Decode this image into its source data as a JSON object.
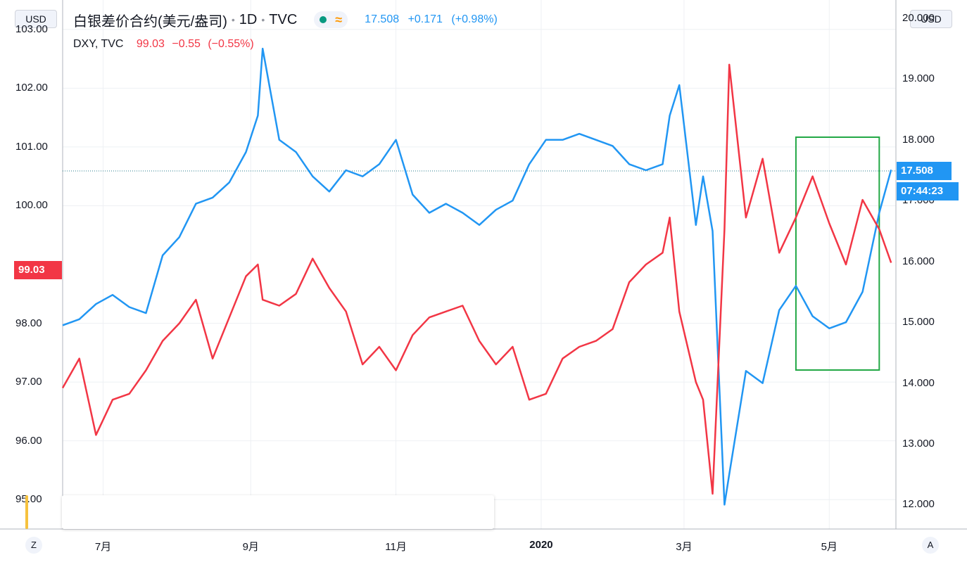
{
  "header": {
    "symbol": "白银差价合约(美元/盎司)",
    "interval": "1D",
    "source": "TVC",
    "silver_last": "17.508",
    "silver_change": "+0.171",
    "silver_change_pct": "(+0.98%)"
  },
  "dxy": {
    "name": "DXY, TVC",
    "last": "99.03",
    "change": "−0.55",
    "change_pct": "(−0.55%)"
  },
  "axes": {
    "left_currency": "USD",
    "right_currency": "USD",
    "left_ticks": [
      "103.00",
      "102.00",
      "101.00",
      "100.00",
      "98.00",
      "97.00",
      "96.00",
      "95.00"
    ],
    "right_ticks": [
      "20.000",
      "19.000",
      "18.000",
      "17.000",
      "16.000",
      "15.000",
      "14.000",
      "13.000",
      "12.000"
    ],
    "time_ticks": [
      "7月",
      "9月",
      "11月",
      "2020",
      "3月",
      "5月"
    ],
    "left_corner": "Z",
    "right_corner": "A"
  },
  "price_tags": {
    "dxy": "99.03",
    "silver": "17.508",
    "countdown": "07:44:23"
  },
  "colors": {
    "silver": "#2196f3",
    "dxy": "#f23645",
    "highlight_box": "#22a845",
    "grid": "#eef0f4"
  },
  "chart_data": {
    "type": "line",
    "x_range": [
      "2019-06-14",
      "2020-05-29"
    ],
    "highlight_range": {
      "x": [
        "2020-04-17",
        "2020-05-22"
      ]
    },
    "y_left": {
      "series": "DXY, TVC",
      "ylim": [
        94.5,
        103.5
      ]
    },
    "y_right": {
      "series": "白银差价合约(美元/盎司)",
      "ylim": [
        11.6,
        20.3
      ]
    },
    "series": [
      {
        "name": "白银差价合约(美元/盎司)",
        "axis": "right",
        "last": 17.508,
        "x": [
          "2019-06-14",
          "2019-06-21",
          "2019-06-28",
          "2019-07-05",
          "2019-07-12",
          "2019-07-19",
          "2019-07-26",
          "2019-08-02",
          "2019-08-09",
          "2019-08-16",
          "2019-08-23",
          "2019-08-30",
          "2019-09-04",
          "2019-09-06",
          "2019-09-13",
          "2019-09-20",
          "2019-09-27",
          "2019-10-04",
          "2019-10-11",
          "2019-10-18",
          "2019-10-25",
          "2019-11-01",
          "2019-11-08",
          "2019-11-15",
          "2019-11-22",
          "2019-11-29",
          "2019-12-06",
          "2019-12-13",
          "2019-12-20",
          "2019-12-27",
          "2020-01-03",
          "2020-01-10",
          "2020-01-17",
          "2020-01-24",
          "2020-01-31",
          "2020-02-07",
          "2020-02-14",
          "2020-02-21",
          "2020-02-24",
          "2020-02-28",
          "2020-03-06",
          "2020-03-09",
          "2020-03-13",
          "2020-03-18",
          "2020-03-20",
          "2020-03-27",
          "2020-04-03",
          "2020-04-10",
          "2020-04-17",
          "2020-04-24",
          "2020-05-01",
          "2020-05-08",
          "2020-05-15",
          "2020-05-22",
          "2020-05-27"
        ],
        "values": [
          14.95,
          15.05,
          15.3,
          15.45,
          15.25,
          15.15,
          16.1,
          16.4,
          16.95,
          17.05,
          17.3,
          17.8,
          18.4,
          19.5,
          18.0,
          17.8,
          17.4,
          17.15,
          17.5,
          17.4,
          17.6,
          18.0,
          17.1,
          16.8,
          16.95,
          16.8,
          16.6,
          16.85,
          17.0,
          17.6,
          18.0,
          18.0,
          18.1,
          18.0,
          17.9,
          17.6,
          17.5,
          17.6,
          18.4,
          18.9,
          16.6,
          17.4,
          16.5,
          12.0,
          12.5,
          14.2,
          14.0,
          15.2,
          15.6,
          15.1,
          14.9,
          15.0,
          15.5,
          16.8,
          17.508
        ]
      },
      {
        "name": "DXY, TVC",
        "axis": "left",
        "last": 99.03,
        "x": [
          "2019-06-14",
          "2019-06-21",
          "2019-06-28",
          "2019-07-05",
          "2019-07-12",
          "2019-07-19",
          "2019-07-26",
          "2019-08-02",
          "2019-08-09",
          "2019-08-16",
          "2019-08-23",
          "2019-08-30",
          "2019-09-04",
          "2019-09-06",
          "2019-09-13",
          "2019-09-20",
          "2019-09-27",
          "2019-10-04",
          "2019-10-11",
          "2019-10-18",
          "2019-10-25",
          "2019-11-01",
          "2019-11-08",
          "2019-11-15",
          "2019-11-22",
          "2019-11-29",
          "2019-12-06",
          "2019-12-13",
          "2019-12-20",
          "2019-12-27",
          "2020-01-03",
          "2020-01-10",
          "2020-01-17",
          "2020-01-24",
          "2020-01-31",
          "2020-02-07",
          "2020-02-14",
          "2020-02-21",
          "2020-02-24",
          "2020-02-28",
          "2020-03-06",
          "2020-03-09",
          "2020-03-13",
          "2020-03-18",
          "2020-03-20",
          "2020-03-27",
          "2020-04-03",
          "2020-04-10",
          "2020-04-17",
          "2020-04-24",
          "2020-05-01",
          "2020-05-08",
          "2020-05-15",
          "2020-05-22",
          "2020-05-27"
        ],
        "values": [
          96.9,
          97.4,
          96.1,
          96.7,
          96.8,
          97.2,
          97.7,
          98.0,
          98.4,
          97.4,
          98.1,
          98.8,
          99.0,
          98.4,
          98.3,
          98.5,
          99.1,
          98.6,
          98.2,
          97.3,
          97.6,
          97.2,
          97.8,
          98.1,
          98.2,
          98.3,
          97.7,
          97.3,
          97.6,
          96.7,
          96.8,
          97.4,
          97.6,
          97.7,
          97.9,
          98.7,
          99.0,
          99.2,
          99.8,
          98.2,
          97.0,
          96.7,
          95.1,
          99.6,
          102.4,
          99.8,
          100.8,
          99.2,
          99.8,
          100.5,
          99.7,
          99.0,
          100.1,
          99.6,
          99.03
        ]
      }
    ]
  }
}
